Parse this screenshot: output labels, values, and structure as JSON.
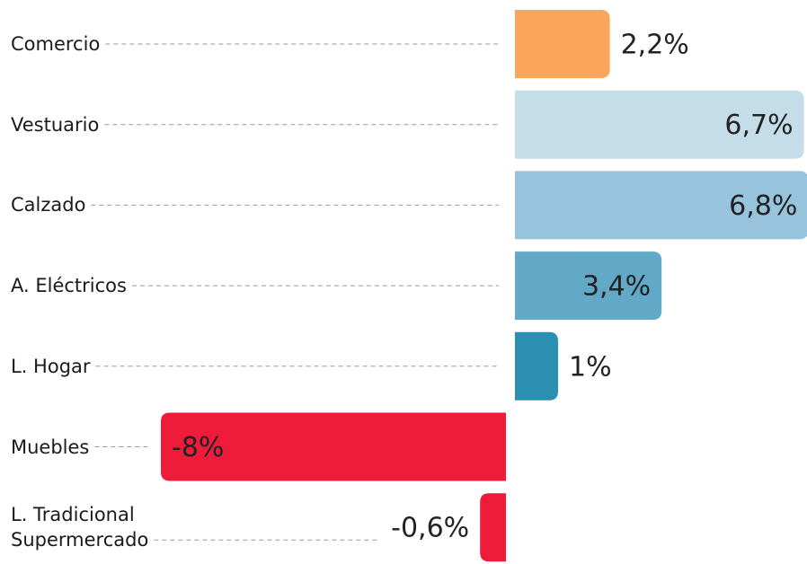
{
  "chart_data": {
    "type": "bar",
    "orientation": "horizontal",
    "categories": [
      "Comercio",
      "Vestuario",
      "Calzado",
      "A. Eléctricos",
      "L. Hogar",
      "Muebles",
      "L. Tradicional\nSupermercado"
    ],
    "values": [
      2.2,
      6.7,
      6.8,
      3.4,
      1,
      -8,
      -0.6
    ],
    "value_labels": [
      "2,2%",
      "6,7%",
      "6,8%",
      "3,4%",
      "1%",
      "-8%",
      "-0,6%"
    ],
    "colors": [
      "#f9a65a",
      "#c5dde9",
      "#97c4dc",
      "#62a9c8",
      "#2b8fb1",
      "#ee1c3a",
      "#ee1c3a"
    ]
  }
}
